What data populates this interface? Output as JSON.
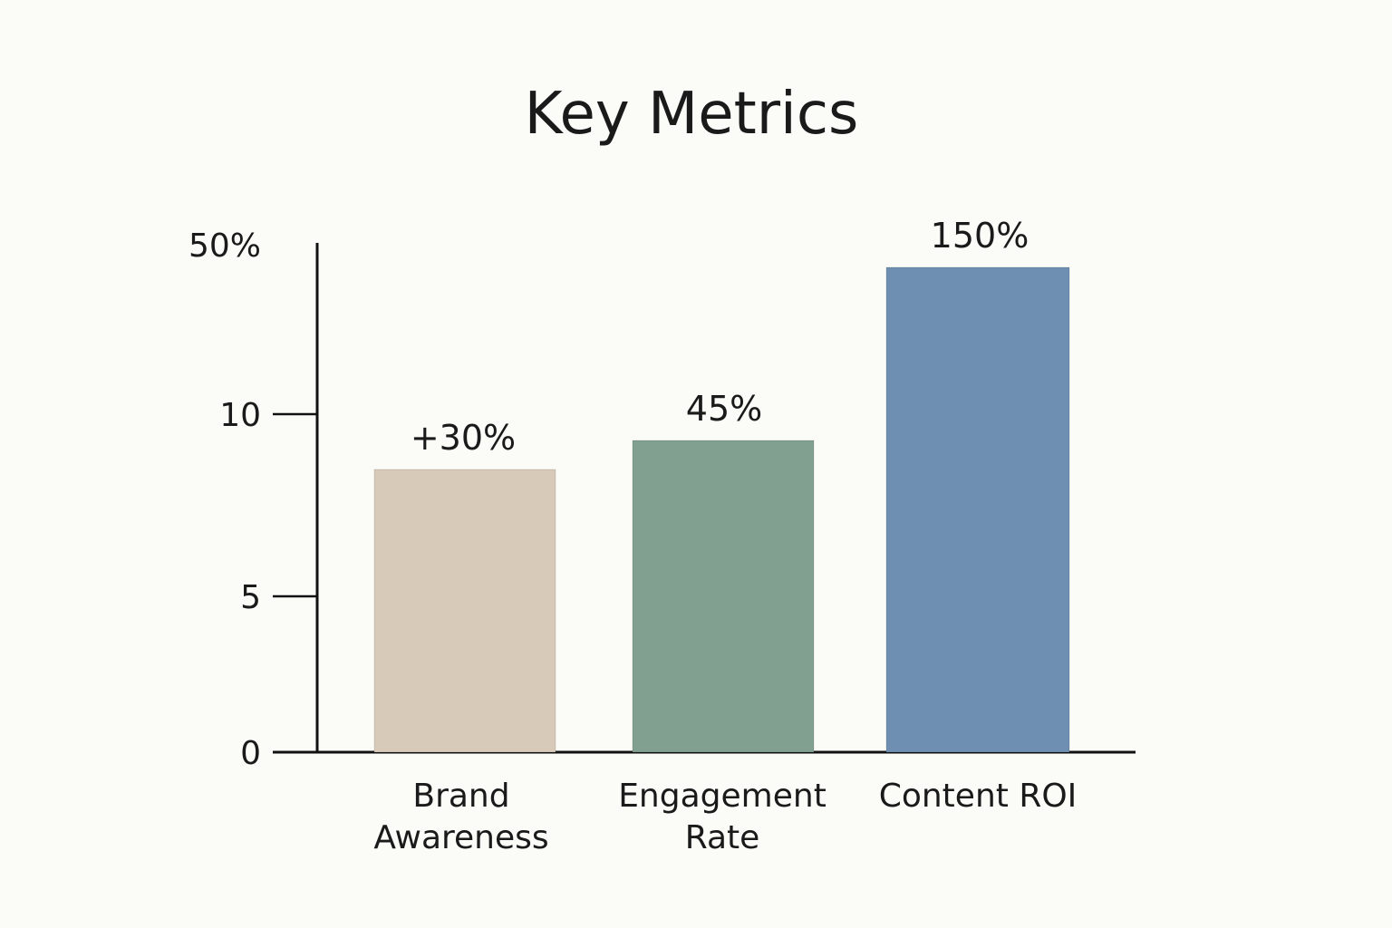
{
  "chart_data": {
    "type": "bar",
    "title": "Key Metrics",
    "xlabel": "",
    "ylabel": "",
    "categories": [
      "Brand Awareness",
      "Engagement Rate",
      "Content ROI"
    ],
    "category_lines": [
      [
        "Brand",
        "Awareness"
      ],
      [
        "Engagement",
        "Rate"
      ],
      [
        "Content ROI"
      ]
    ],
    "values": [
      30,
      45,
      150
    ],
    "data_labels": [
      "+30%",
      "45%",
      "150%"
    ],
    "bar_colors": [
      "#d8cab8",
      "#82a08f",
      "#6e8fb1"
    ],
    "y_ticks": [
      {
        "label": "0",
        "has_mark": false
      },
      {
        "label": "5",
        "has_mark": true
      },
      {
        "label": "10",
        "has_mark": true
      },
      {
        "label": "50%",
        "has_mark": false
      }
    ],
    "grid": false,
    "legend": "none"
  }
}
